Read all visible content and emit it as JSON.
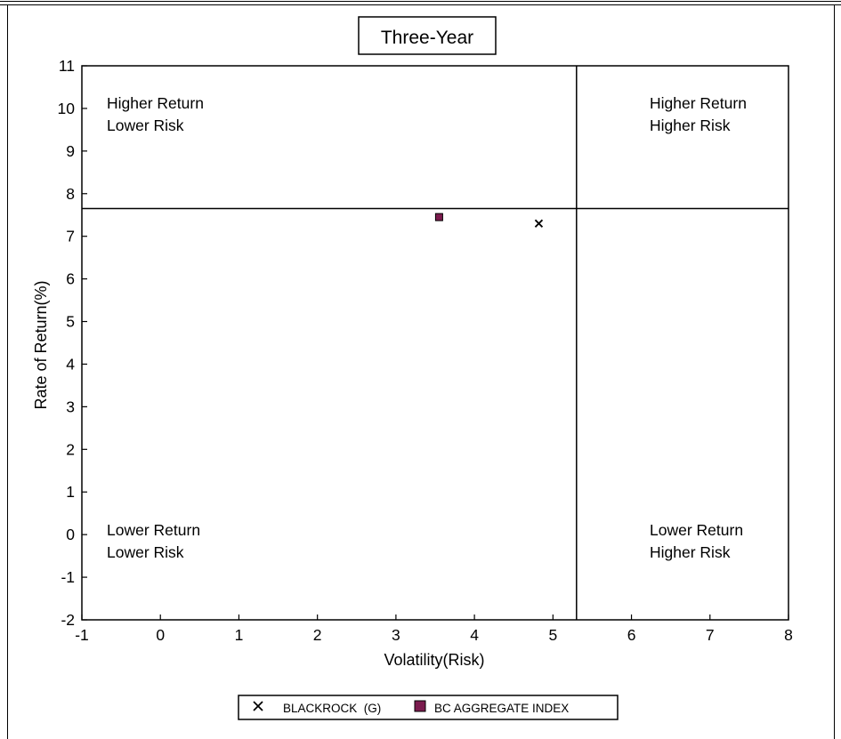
{
  "chart_data": {
    "type": "scatter",
    "title": "Three-Year",
    "xlabel": "Volatility(Risk)",
    "ylabel": "Rate of Return(%)",
    "xlim": [
      -1,
      8
    ],
    "ylim": [
      -2,
      11
    ],
    "xticks": [
      "-1",
      "0",
      "1",
      "2",
      "3",
      "4",
      "5",
      "6",
      "7",
      "8"
    ],
    "yticks": [
      "-2",
      "-1",
      "0",
      "1",
      "2",
      "3",
      "4",
      "5",
      "6",
      "7",
      "8",
      "9",
      "10",
      "11"
    ],
    "quadrant_x": 5.3,
    "quadrant_y": 7.65,
    "grid": false,
    "legend_placement": "bottom-center",
    "quadrant_labels": {
      "top_left": [
        "Higher Return",
        "Lower Risk"
      ],
      "top_right": [
        "Higher Return",
        "Higher Risk"
      ],
      "bottom_left": [
        "Lower Return",
        "Lower Risk"
      ],
      "bottom_right": [
        "Lower Return",
        "Higher Risk"
      ]
    },
    "series": [
      {
        "name": "BLACKROCK  (G)",
        "marker": "x",
        "color": "#000000",
        "x": [
          4.82
        ],
        "y": [
          7.3
        ]
      },
      {
        "name": "BC AGGREGATE INDEX",
        "marker": "square",
        "color": "#7b1b4e",
        "x": [
          3.55
        ],
        "y": [
          7.45
        ]
      }
    ]
  }
}
